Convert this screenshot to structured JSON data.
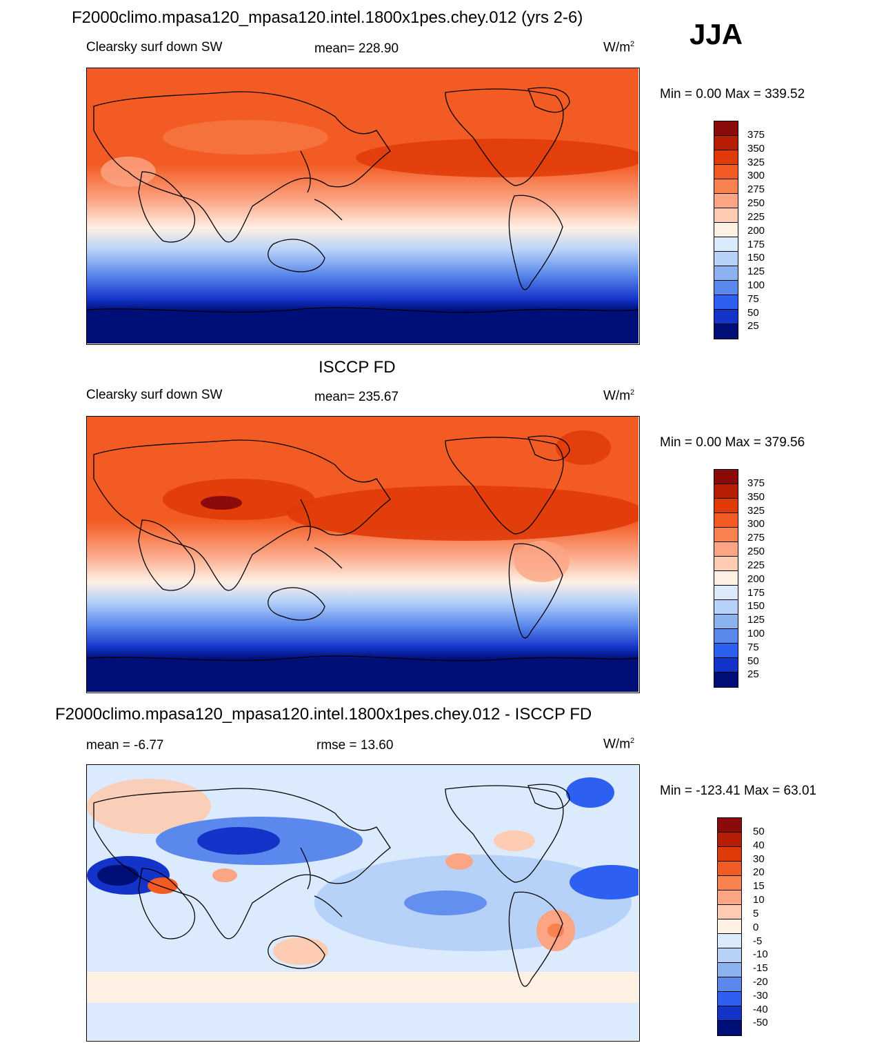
{
  "season": "JJA",
  "panels": [
    {
      "title": "F2000climo.mpasa120_mpasa120.intel.1800x1pes.chey.012 (yrs 2-6)",
      "left_label": "Clearsky surf down SW",
      "center_label": "mean= 228.90",
      "units": "W/m",
      "units_sup": "2",
      "minmax": "Min =    0.00 Max = 339.52",
      "colorbar": {
        "labels": [
          "375",
          "350",
          "325",
          "300",
          "275",
          "250",
          "225",
          "200",
          "175",
          "150",
          "125",
          "100",
          "75",
          "50",
          "25"
        ],
        "colors": [
          "#8b0a0a",
          "#b71c05",
          "#e03a08",
          "#f25c24",
          "#f7814f",
          "#fba585",
          "#fdccb2",
          "#fff0e4",
          "#dbeafc",
          "#b7d2f8",
          "#8cb2f0",
          "#5a88ec",
          "#2d5ff0",
          "#1433c8",
          "#000f78"
        ]
      }
    },
    {
      "title": "ISCCP FD",
      "left_label": "Clearsky surf down SW",
      "center_label": "mean= 235.67",
      "units": "W/m",
      "units_sup": "2",
      "minmax": "Min =    0.00 Max = 379.56",
      "colorbar": {
        "labels": [
          "375",
          "350",
          "325",
          "300",
          "275",
          "250",
          "225",
          "200",
          "175",
          "150",
          "125",
          "100",
          "75",
          "50",
          "25"
        ],
        "colors": [
          "#8b0a0a",
          "#b71c05",
          "#e03a08",
          "#f25c24",
          "#f7814f",
          "#fba585",
          "#fdccb2",
          "#fff0e4",
          "#dbeafc",
          "#b7d2f8",
          "#8cb2f0",
          "#5a88ec",
          "#2d5ff0",
          "#1433c8",
          "#000f78"
        ]
      }
    },
    {
      "title": "F2000climo.mpasa120_mpasa120.intel.1800x1pes.chey.012 - ISCCP FD",
      "left_label": "mean =  -6.77",
      "center_label": "rmse =  13.60",
      "units": "W/m",
      "units_sup": "2",
      "minmax": "Min = -123.41 Max =  63.01",
      "colorbar": {
        "labels": [
          "50",
          "40",
          "30",
          "20",
          "15",
          "10",
          "5",
          "0",
          "-5",
          "-10",
          "-15",
          "-20",
          "-30",
          "-40",
          "-50"
        ],
        "colors": [
          "#8b0a0a",
          "#b71c05",
          "#e03a08",
          "#f25c24",
          "#f7814f",
          "#fba585",
          "#fdccb2",
          "#fff0e4",
          "#dbeafc",
          "#b7d2f8",
          "#8cb2f0",
          "#5a88ec",
          "#2d5ff0",
          "#1433c8",
          "#000f78"
        ]
      }
    }
  ]
}
